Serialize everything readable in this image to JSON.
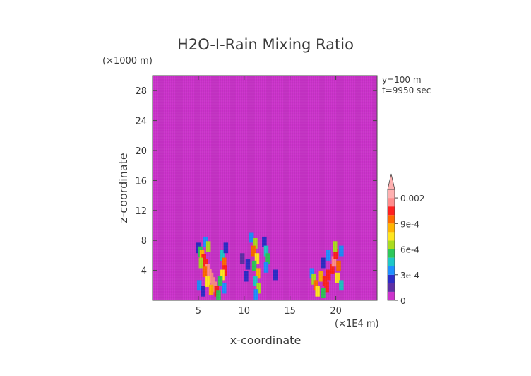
{
  "chart_data": {
    "type": "heatmap",
    "title": "H2O-I-Rain Mixing Ratio",
    "xlabel": "x-coordinate",
    "ylabel": "z-coordinate",
    "x_unit": "(×1E4 m)",
    "y_unit": "(×1000 m)",
    "annotation_y": "y=100  m",
    "annotation_t": "t=9950  sec",
    "xlim": [
      0,
      24.5
    ],
    "ylim": [
      0,
      30
    ],
    "x_ticks": [
      5,
      10,
      15,
      20
    ],
    "y_ticks": [
      4,
      8,
      12,
      16,
      20,
      24,
      28
    ],
    "background_value": 0,
    "colorbar": {
      "labels": [
        "0",
        "3e-4",
        "6e-4",
        "9e-4",
        "0.002"
      ],
      "label_values": [
        0,
        0.0003,
        0.0006,
        0.0009,
        0.002
      ],
      "levels": [
        0,
        0.0001,
        0.0002,
        0.0003,
        0.0004,
        0.0005,
        0.0006,
        0.0007,
        0.0008,
        0.0009,
        0.001,
        0.0015,
        0.002
      ],
      "colors": [
        "#cc33cc",
        "#5e2fa6",
        "#2c2cc8",
        "#1e90ff",
        "#1ec8c8",
        "#2ec85a",
        "#aadc1e",
        "#ffe61e",
        "#ffb400",
        "#ff6a00",
        "#ff2020",
        "#ff8c8c",
        "#ffb0b0"
      ],
      "extend": "max"
    },
    "cells": [
      [
        5.0,
        7.0,
        0.0002
      ],
      [
        5.2,
        6.5,
        0.0005
      ],
      [
        5.4,
        6.0,
        0.0008
      ],
      [
        5.6,
        5.5,
        0.0012
      ],
      [
        5.3,
        5.0,
        0.0006
      ],
      [
        5.8,
        4.8,
        0.0014
      ],
      [
        6.0,
        4.2,
        0.0016
      ],
      [
        5.7,
        3.8,
        0.0009
      ],
      [
        6.2,
        3.5,
        0.0018
      ],
      [
        6.4,
        3.0,
        0.0015
      ],
      [
        6.0,
        2.5,
        0.0007
      ],
      [
        6.6,
        2.4,
        0.0019
      ],
      [
        6.8,
        1.8,
        0.0016
      ],
      [
        6.4,
        1.4,
        0.0008
      ],
      [
        7.0,
        1.2,
        0.0013
      ],
      [
        7.2,
        0.6,
        0.0005
      ],
      [
        5.1,
        2.0,
        0.0003
      ],
      [
        5.5,
        1.2,
        0.0002
      ],
      [
        5.8,
        7.8,
        0.0003
      ],
      [
        6.1,
        7.2,
        0.0006
      ],
      [
        7.6,
        6.0,
        0.0004
      ],
      [
        7.8,
        5.0,
        0.0009
      ],
      [
        7.9,
        4.0,
        0.0012
      ],
      [
        7.6,
        3.4,
        0.0007
      ],
      [
        7.4,
        2.6,
        0.0005
      ],
      [
        8.0,
        7.0,
        0.0002
      ],
      [
        7.8,
        1.6,
        0.0003
      ],
      [
        10.8,
        8.4,
        0.0003
      ],
      [
        11.2,
        7.6,
        0.0006
      ],
      [
        11.0,
        6.6,
        0.0009
      ],
      [
        11.4,
        5.6,
        0.0007
      ],
      [
        11.1,
        4.6,
        0.0005
      ],
      [
        11.5,
        3.6,
        0.0008
      ],
      [
        11.2,
        2.6,
        0.0004
      ],
      [
        11.6,
        1.6,
        0.0006
      ],
      [
        11.3,
        0.8,
        0.0003
      ],
      [
        12.2,
        7.8,
        0.0002
      ],
      [
        12.4,
        6.6,
        0.0004
      ],
      [
        12.6,
        5.6,
        0.0005
      ],
      [
        12.4,
        4.4,
        0.0003
      ],
      [
        10.4,
        4.8,
        0.0002
      ],
      [
        10.2,
        3.2,
        0.0002
      ],
      [
        13.4,
        3.4,
        0.0002
      ],
      [
        9.8,
        5.6,
        0.0001
      ],
      [
        17.4,
        3.6,
        0.0003
      ],
      [
        17.6,
        2.8,
        0.0006
      ],
      [
        17.8,
        2.0,
        0.0009
      ],
      [
        18.0,
        1.2,
        0.0007
      ],
      [
        18.4,
        3.2,
        0.0008
      ],
      [
        18.8,
        2.6,
        0.0012
      ],
      [
        19.2,
        3.4,
        0.001
      ],
      [
        19.6,
        4.2,
        0.0013
      ],
      [
        19.8,
        5.2,
        0.0015
      ],
      [
        20.0,
        6.2,
        0.0012
      ],
      [
        19.9,
        7.2,
        0.0006
      ],
      [
        20.3,
        4.6,
        0.0009
      ],
      [
        20.2,
        3.0,
        0.0007
      ],
      [
        19.0,
        1.8,
        0.0011
      ],
      [
        18.6,
        1.0,
        0.0005
      ],
      [
        20.6,
        2.0,
        0.0004
      ],
      [
        19.2,
        6.0,
        0.0003
      ],
      [
        18.6,
        5.0,
        0.0002
      ],
      [
        20.6,
        6.6,
        0.0003
      ]
    ]
  }
}
